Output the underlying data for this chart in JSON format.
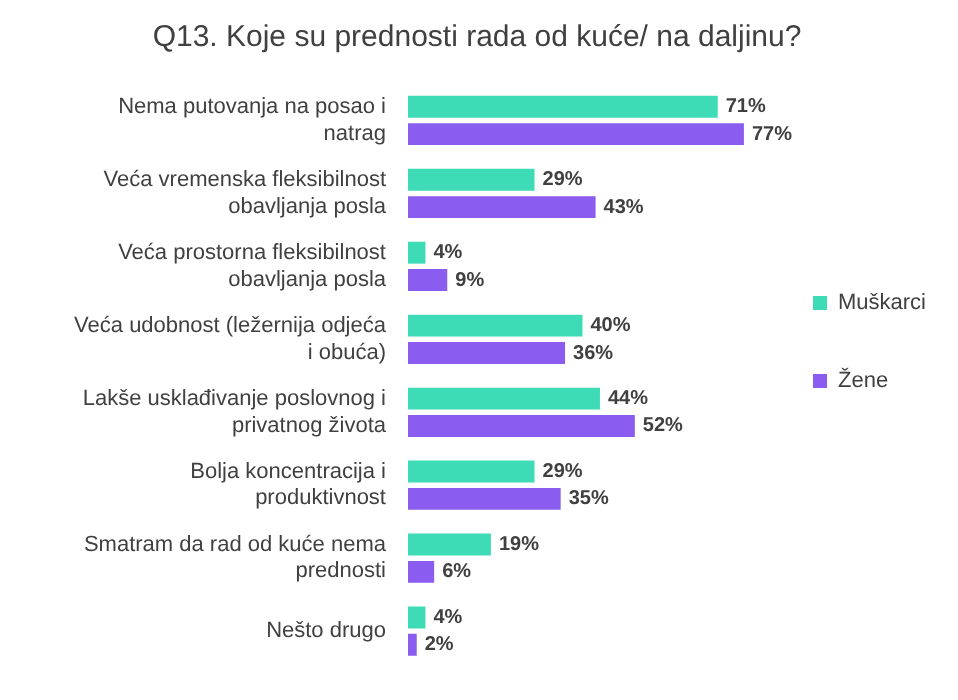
{
  "chart_data": {
    "type": "bar",
    "orientation": "horizontal",
    "title": "Q13. Koje su prednosti rada od kuće/ na daljinu?",
    "categories": [
      "Nema putovanja na posao i natrag",
      "Veća vremenska fleksibilnost obavljanja posla",
      "Veća prostorna fleksibilnost obavljanja posla",
      "Veća udobnost (ležernija odjeća i obuća)",
      "Lakše usklađivanje poslovnog i privatnog života",
      "Bolja koncentracija i produktivnost",
      "Smatram da rad od kuće nema prednosti",
      "Nešto drugo"
    ],
    "series": [
      {
        "name": "Muškarci",
        "color": "#3ddbb6",
        "values": [
          71,
          29,
          4,
          40,
          44,
          29,
          19,
          4
        ],
        "value_labels": [
          "71%",
          "29%",
          "4%",
          "40%",
          "44%",
          "29%",
          "19%",
          "4%"
        ]
      },
      {
        "name": "Žene",
        "color": "#8a5cf0",
        "values": [
          77,
          43,
          9,
          36,
          52,
          35,
          6,
          2
        ],
        "value_labels": [
          "77%",
          "43%",
          "9%",
          "36%",
          "52%",
          "35%",
          "6%",
          "2%"
        ]
      }
    ],
    "tick_labels": "y",
    "legend": "right"
  }
}
